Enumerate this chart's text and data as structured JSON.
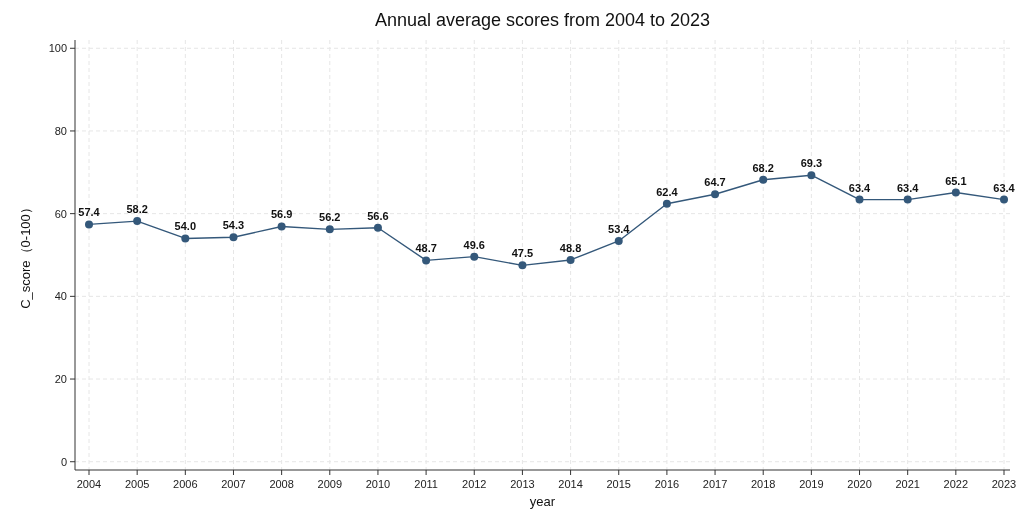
{
  "chart_data": {
    "type": "line",
    "title": "Annual average scores from 2004 to 2023",
    "xlabel": "year",
    "ylabel": "C_score（0-100）",
    "categories": [
      "2004",
      "2005",
      "2006",
      "2007",
      "2008",
      "2009",
      "2010",
      "2011",
      "2012",
      "2013",
      "2014",
      "2015",
      "2016",
      "2017",
      "2018",
      "2019",
      "2020",
      "2021",
      "2022",
      "2023"
    ],
    "series": [
      {
        "color": "#34587a",
        "values": [
          57.4,
          58.2,
          54.0,
          54.3,
          56.9,
          56.2,
          56.6,
          48.7,
          49.6,
          47.5,
          48.8,
          53.4,
          62.4,
          64.7,
          68.2,
          69.3,
          63.4,
          63.4,
          65.1,
          63.4
        ],
        "value_labels": [
          "57.4",
          "58.2",
          "54.0",
          "54.3",
          "56.9",
          "56.2",
          "56.6",
          "48.7",
          "49.6",
          "47.5",
          "48.8",
          "53.4",
          "62.4",
          "64.7",
          "68.2",
          "69.3",
          "63.4",
          "63.4",
          "65.1",
          "63.4"
        ]
      }
    ],
    "ylim": [
      -2,
      102
    ],
    "yticks": [
      0,
      20,
      40,
      60,
      80,
      100
    ],
    "grid": true,
    "marker": "circle",
    "line_style": "solid",
    "data_labels": true
  }
}
